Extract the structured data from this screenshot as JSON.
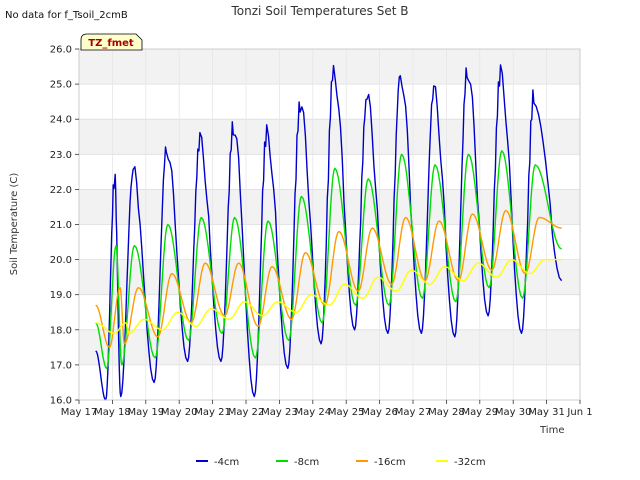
{
  "note": "No data for f_Tsoil_2cmB",
  "badge": "TZ_fmet",
  "chart_data": {
    "type": "line",
    "title": "Tonzi Soil Temperatures Set B",
    "xlabel": "Time",
    "ylabel": "Soil Temperature (C)",
    "xlim": [
      17,
      32
    ],
    "ylim": [
      16.0,
      26.0
    ],
    "x_ticks": [
      17,
      18,
      19,
      20,
      21,
      22,
      23,
      24,
      25,
      26,
      27,
      28,
      29,
      30,
      31,
      32
    ],
    "x_tick_labels": [
      "May 17",
      "May 18",
      "May 19",
      "May 20",
      "May 21",
      "May 22",
      "May 23",
      "May 24",
      "May 25",
      "May 26",
      "May 27",
      "May 28",
      "May 29",
      "May 30",
      "May 31",
      "Jun 1"
    ],
    "y_ticks": [
      16.0,
      17.0,
      18.0,
      19.0,
      20.0,
      21.0,
      22.0,
      23.0,
      24.0,
      25.0,
      26.0
    ],
    "y_tick_labels": [
      "16.0",
      "17.0",
      "18.0",
      "19.0",
      "20.0",
      "21.0",
      "22.0",
      "23.0",
      "24.0",
      "25.0",
      "26.0"
    ],
    "grid": true,
    "legend_position": "bottom-center",
    "x_start": 17.5,
    "x_end": 31.45,
    "series": [
      {
        "name": "-4cm",
        "color": "#0000cc",
        "days": [
          {
            "min": 16.0,
            "max": 22.3
          },
          {
            "min": 16.1,
            "max": 22.5
          },
          {
            "min": 16.5,
            "max": 23.2
          },
          {
            "min": 17.1,
            "max": 23.4
          },
          {
            "min": 17.1,
            "max": 23.8
          },
          {
            "min": 16.1,
            "max": 23.6
          },
          {
            "min": 16.9,
            "max": 24.4
          },
          {
            "min": 17.6,
            "max": 25.4
          },
          {
            "min": 18.0,
            "max": 24.6
          },
          {
            "min": 17.9,
            "max": 25.3
          },
          {
            "min": 17.9,
            "max": 24.8
          },
          {
            "min": 17.8,
            "max": 25.4
          },
          {
            "min": 18.4,
            "max": 25.3
          },
          {
            "min": 17.9,
            "max": 24.7
          }
        ],
        "start": 17.4,
        "end": 19.4
      },
      {
        "name": "-8cm",
        "color": "#00dd00",
        "days": [
          {
            "min": 16.9,
            "max": 20.4
          },
          {
            "min": 17.0,
            "max": 20.4
          },
          {
            "min": 17.2,
            "max": 21.0
          },
          {
            "min": 17.7,
            "max": 21.2
          },
          {
            "min": 17.9,
            "max": 21.2
          },
          {
            "min": 17.2,
            "max": 21.1
          },
          {
            "min": 17.7,
            "max": 21.8
          },
          {
            "min": 18.2,
            "max": 22.6
          },
          {
            "min": 18.7,
            "max": 22.3
          },
          {
            "min": 18.7,
            "max": 23.0
          },
          {
            "min": 18.9,
            "max": 22.7
          },
          {
            "min": 18.8,
            "max": 23.0
          },
          {
            "min": 19.2,
            "max": 23.1
          },
          {
            "min": 18.9,
            "max": 22.7
          }
        ],
        "start": 18.2,
        "end": 20.3
      },
      {
        "name": "-16cm",
        "color": "#ff9900",
        "days": [
          {
            "min": 17.5,
            "max": 19.2
          },
          {
            "min": 17.6,
            "max": 19.2
          },
          {
            "min": 17.8,
            "max": 19.6
          },
          {
            "min": 18.2,
            "max": 19.9
          },
          {
            "min": 18.4,
            "max": 19.9
          },
          {
            "min": 18.1,
            "max": 19.8
          },
          {
            "min": 18.3,
            "max": 20.2
          },
          {
            "min": 18.7,
            "max": 20.8
          },
          {
            "min": 19.1,
            "max": 20.9
          },
          {
            "min": 19.3,
            "max": 21.2
          },
          {
            "min": 19.4,
            "max": 21.1
          },
          {
            "min": 19.4,
            "max": 21.3
          },
          {
            "min": 19.7,
            "max": 21.4
          },
          {
            "min": 19.6,
            "max": 21.2
          }
        ],
        "start": 18.7,
        "end": 20.9
      },
      {
        "name": "-32cm",
        "color": "#ffff00",
        "days": [
          {
            "min": 17.9,
            "max": 18.2
          },
          {
            "min": 17.9,
            "max": 18.3
          },
          {
            "min": 18.0,
            "max": 18.5
          },
          {
            "min": 18.1,
            "max": 18.6
          },
          {
            "min": 18.3,
            "max": 18.8
          },
          {
            "min": 18.4,
            "max": 18.8
          },
          {
            "min": 18.5,
            "max": 19.0
          },
          {
            "min": 18.7,
            "max": 19.3
          },
          {
            "min": 18.9,
            "max": 19.5
          },
          {
            "min": 19.1,
            "max": 19.7
          },
          {
            "min": 19.3,
            "max": 19.8
          },
          {
            "min": 19.4,
            "max": 19.9
          },
          {
            "min": 19.5,
            "max": 20.0
          },
          {
            "min": 19.6,
            "max": 20.0
          }
        ],
        "start": 18.2,
        "end": 20.0
      }
    ]
  }
}
